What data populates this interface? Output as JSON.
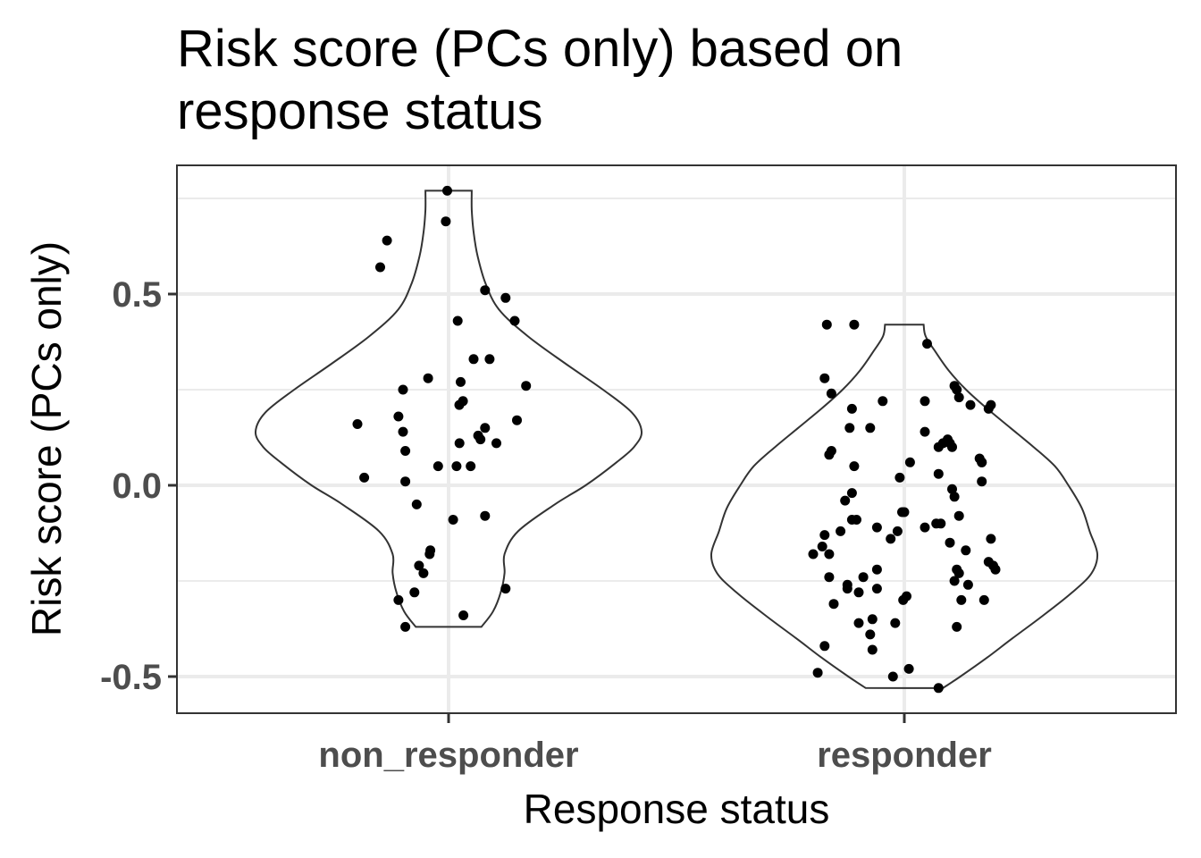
{
  "chart_data": {
    "type": "violin",
    "title": "Risk score (PCs only) based on response status",
    "title_lines": [
      "Risk score (PCs only) based on",
      "response status"
    ],
    "xlabel": "Response status",
    "ylabel": "Risk score (PCs only)",
    "categories": [
      "non_responder",
      "responder"
    ],
    "ylim": [
      -0.6,
      0.83
    ],
    "y_ticks": [
      {
        "value": 0.5,
        "label": "0.5"
      },
      {
        "value": 0.0,
        "label": "0.0"
      },
      {
        "value": -0.5,
        "label": "-0.5"
      }
    ],
    "y_minor_ticks": [
      0.75,
      0.25,
      -0.25
    ],
    "grid": true,
    "legend": "none",
    "violins": [
      {
        "category": "non_responder",
        "min": -0.37,
        "max": 0.77,
        "profile": [
          [
            -0.37,
            0.17
          ],
          [
            -0.33,
            0.23
          ],
          [
            -0.28,
            0.27
          ],
          [
            -0.23,
            0.29
          ],
          [
            -0.18,
            0.29
          ],
          [
            -0.12,
            0.36
          ],
          [
            -0.05,
            0.55
          ],
          [
            0.0,
            0.71
          ],
          [
            0.06,
            0.87
          ],
          [
            0.1,
            0.96
          ],
          [
            0.14,
            1.0
          ],
          [
            0.19,
            0.95
          ],
          [
            0.25,
            0.8
          ],
          [
            0.32,
            0.6
          ],
          [
            0.39,
            0.41
          ],
          [
            0.46,
            0.26
          ],
          [
            0.53,
            0.19
          ],
          [
            0.6,
            0.15
          ],
          [
            0.66,
            0.13
          ],
          [
            0.72,
            0.12
          ],
          [
            0.77,
            0.12
          ]
        ]
      },
      {
        "category": "responder",
        "min": -0.53,
        "max": 0.42,
        "profile": [
          [
            -0.53,
            0.2
          ],
          [
            -0.5,
            0.29
          ],
          [
            -0.45,
            0.43
          ],
          [
            -0.4,
            0.56
          ],
          [
            -0.34,
            0.72
          ],
          [
            -0.28,
            0.87
          ],
          [
            -0.23,
            0.97
          ],
          [
            -0.18,
            1.0
          ],
          [
            -0.12,
            0.96
          ],
          [
            -0.06,
            0.92
          ],
          [
            0.0,
            0.85
          ],
          [
            0.05,
            0.78
          ],
          [
            0.1,
            0.67
          ],
          [
            0.15,
            0.55
          ],
          [
            0.2,
            0.43
          ],
          [
            0.25,
            0.32
          ],
          [
            0.3,
            0.23
          ],
          [
            0.35,
            0.16
          ],
          [
            0.39,
            0.11
          ],
          [
            0.42,
            0.1
          ]
        ]
      }
    ],
    "points": [
      {
        "category": "non_responder",
        "y": [
          0.77,
          0.69,
          0.64,
          0.57,
          0.51,
          0.49,
          0.43,
          0.43,
          0.33,
          0.33,
          0.28,
          0.27,
          0.26,
          0.25,
          0.22,
          0.21,
          0.18,
          0.17,
          0.16,
          0.15,
          0.14,
          0.13,
          0.12,
          0.11,
          0.11,
          0.09,
          0.05,
          0.05,
          0.05,
          0.02,
          0.01,
          -0.05,
          -0.08,
          -0.09,
          -0.17,
          -0.18,
          -0.21,
          -0.23,
          -0.27,
          -0.28,
          -0.3,
          -0.34,
          -0.37
        ],
        "x_jitter": [
          -0.006,
          -0.012,
          -0.27,
          -0.3,
          0.16,
          0.25,
          0.04,
          0.29,
          0.11,
          0.18,
          -0.09,
          0.053,
          0.34,
          -0.2,
          0.063,
          0.047,
          -0.22,
          0.3,
          -0.4,
          0.16,
          -0.2,
          0.13,
          0.14,
          0.21,
          0.048,
          -0.19,
          -0.046,
          0.035,
          0.097,
          -0.37,
          -0.19,
          -0.14,
          0.16,
          0.02,
          -0.08,
          -0.083,
          -0.13,
          -0.11,
          0.25,
          -0.15,
          -0.22,
          0.065,
          -0.19
        ]
      },
      {
        "category": "responder",
        "y": [
          0.42,
          0.42,
          0.37,
          0.28,
          0.26,
          0.25,
          0.24,
          0.23,
          0.22,
          0.22,
          0.21,
          0.21,
          0.2,
          0.2,
          0.15,
          0.15,
          0.14,
          0.12,
          0.11,
          0.11,
          0.1,
          0.1,
          0.09,
          0.08,
          0.07,
          0.06,
          0.06,
          0.06,
          0.05,
          0.03,
          0.02,
          0.01,
          -0.01,
          -0.02,
          -0.03,
          -0.04,
          -0.07,
          -0.07,
          -0.08,
          -0.09,
          -0.09,
          -0.1,
          -0.1,
          -0.11,
          -0.11,
          -0.12,
          -0.12,
          -0.13,
          -0.14,
          -0.14,
          -0.15,
          -0.16,
          -0.17,
          -0.18,
          -0.18,
          -0.2,
          -0.21,
          -0.22,
          -0.22,
          -0.22,
          -0.23,
          -0.24,
          -0.24,
          -0.25,
          -0.26,
          -0.26,
          -0.27,
          -0.27,
          -0.28,
          -0.29,
          -0.3,
          -0.3,
          -0.3,
          -0.31,
          -0.35,
          -0.36,
          -0.36,
          -0.37,
          -0.39,
          -0.42,
          -0.43,
          -0.48,
          -0.49,
          -0.5,
          -0.53
        ],
        "x_jitter": [
          -0.34,
          -0.22,
          0.1,
          -0.35,
          0.22,
          0.23,
          -0.32,
          0.24,
          0.09,
          -0.095,
          0.29,
          0.38,
          0.37,
          -0.23,
          -0.15,
          -0.24,
          0.09,
          0.19,
          0.17,
          0.2,
          0.21,
          0.15,
          -0.32,
          -0.33,
          0.33,
          0.025,
          0.34,
          0.34,
          -0.22,
          0.15,
          -0.02,
          0.34,
          0.21,
          -0.23,
          0.22,
          -0.26,
          0.0,
          -0.01,
          0.24,
          -0.23,
          -0.21,
          0.14,
          0.16,
          -0.12,
          0.09,
          -0.28,
          -0.03,
          -0.35,
          0.38,
          -0.06,
          0.2,
          -0.36,
          0.27,
          -0.4,
          -0.33,
          0.37,
          0.39,
          0.4,
          0.23,
          -0.12,
          0.24,
          -0.18,
          -0.33,
          0.22,
          -0.25,
          0.28,
          -0.12,
          -0.25,
          -0.2,
          0.01,
          0.35,
          -0.005,
          0.25,
          -0.31,
          -0.14,
          -0.04,
          -0.2,
          0.23,
          -0.15,
          -0.35,
          -0.14,
          0.02,
          -0.38,
          -0.05,
          0.15
        ]
      }
    ]
  }
}
